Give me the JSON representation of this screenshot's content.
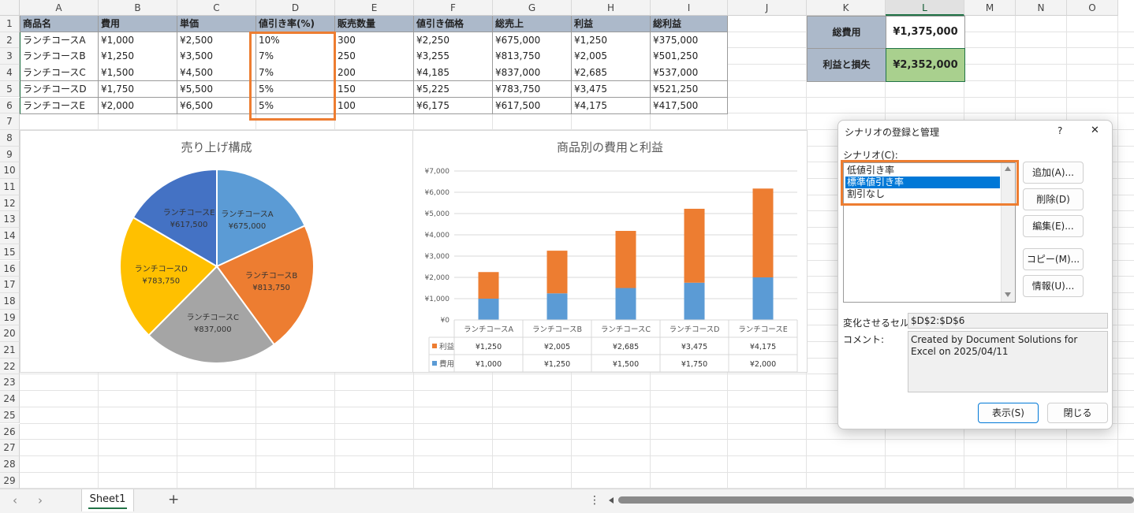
{
  "columns": [
    "A",
    "B",
    "C",
    "D",
    "E",
    "F",
    "G",
    "H",
    "I",
    "J",
    "K",
    "L",
    "M",
    "N",
    "O"
  ],
  "rows": [
    "1",
    "2",
    "3",
    "4",
    "5",
    "6",
    "7",
    "8",
    "9",
    "10",
    "11",
    "12",
    "13",
    "14",
    "15",
    "16",
    "17",
    "18",
    "19",
    "20",
    "21",
    "22",
    "23",
    "24",
    "25",
    "26",
    "27",
    "28",
    "29"
  ],
  "table": {
    "headers": [
      "商品名",
      "費用",
      "単価",
      "値引き率(%)",
      "販売数量",
      "値引き価格",
      "総売上",
      "利益",
      "総利益"
    ],
    "rows": [
      [
        "ランチコースA",
        "¥1,000",
        "¥2,500",
        "10%",
        "300",
        "¥2,250",
        "¥675,000",
        "¥1,250",
        "¥375,000"
      ],
      [
        "ランチコースB",
        "¥1,250",
        "¥3,500",
        "7%",
        "250",
        "¥3,255",
        "¥813,750",
        "¥2,005",
        "¥501,250"
      ],
      [
        "ランチコースC",
        "¥1,500",
        "¥4,500",
        "7%",
        "200",
        "¥4,185",
        "¥837,000",
        "¥2,685",
        "¥537,000"
      ],
      [
        "ランチコースD",
        "¥1,750",
        "¥5,500",
        "5%",
        "150",
        "¥5,225",
        "¥783,750",
        "¥3,475",
        "¥521,250"
      ],
      [
        "ランチコースE",
        "¥2,000",
        "¥6,500",
        "5%",
        "100",
        "¥6,175",
        "¥617,500",
        "¥4,175",
        "¥417,500"
      ]
    ]
  },
  "summary": {
    "total_cost_label": "総費用",
    "total_cost_value": "¥1,375,000",
    "profit_label": "利益と損失",
    "profit_value": "¥2,352,000",
    "profit_fill": "#a9d08e"
  },
  "chart_data": [
    {
      "type": "pie",
      "title": "売り上げ構成",
      "categories": [
        "ランチコースA",
        "ランチコースB",
        "ランチコースC",
        "ランチコースD",
        "ランチコースE"
      ],
      "values": [
        675000,
        813750,
        837000,
        783750,
        617500
      ],
      "labels": [
        "¥675,000",
        "¥813,750",
        "¥837,000",
        "¥783,750",
        "¥617,500"
      ],
      "colors": [
        "#5b9bd5",
        "#ed7d31",
        "#a5a5a5",
        "#ffc000",
        "#4472c4"
      ]
    },
    {
      "type": "bar",
      "stacked": true,
      "title": "商品別の費用と利益",
      "categories": [
        "ランチコースA",
        "ランチコースB",
        "ランチコースC",
        "ランチコースD",
        "ランチコースE"
      ],
      "series": [
        {
          "name": "費用",
          "values": [
            1000,
            1250,
            1500,
            1750,
            2000
          ],
          "color": "#5b9bd5"
        },
        {
          "name": "利益",
          "values": [
            1250,
            2005,
            2685,
            3475,
            4175
          ],
          "color": "#ed7d31"
        }
      ],
      "ylim": [
        0,
        7000
      ],
      "yticks": [
        "¥0",
        "¥1,000",
        "¥2,000",
        "¥3,000",
        "¥4,000",
        "¥5,000",
        "¥6,000",
        "¥7,000"
      ],
      "data_table": {
        "rows": [
          {
            "name": "利益",
            "cells": [
              "¥1,250",
              "¥2,005",
              "¥2,685",
              "¥3,475",
              "¥4,175"
            ]
          },
          {
            "name": "費用",
            "cells": [
              "¥1,000",
              "¥1,250",
              "¥1,500",
              "¥1,750",
              "¥2,000"
            ]
          }
        ]
      }
    }
  ],
  "dialog": {
    "title": "シナリオの登録と管理",
    "help": "?",
    "close": "✕",
    "scenario_label": "シナリオ(C):",
    "scenarios": [
      "低値引き率",
      "標準値引き率",
      "割引なし"
    ],
    "selected_index": 1,
    "buttons": {
      "add": "追加(A)...",
      "delete": "削除(D)",
      "edit": "編集(E)...",
      "copy": "コピー(M)...",
      "info": "情報(U)...",
      "show": "表示(S)",
      "close_btn": "閉じる"
    },
    "changing_cells_label": "変化させるセル:",
    "changing_cells_value": "$D$2:$D$6",
    "comment_label": "コメント:",
    "comment_value": "Created by Document Solutions for Excel on 2025/04/11"
  },
  "tabbar": {
    "sheet": "Sheet1",
    "add": "+",
    "prev": "‹",
    "next": "›",
    "menu": "⋮"
  },
  "accent": "#ed7d31"
}
